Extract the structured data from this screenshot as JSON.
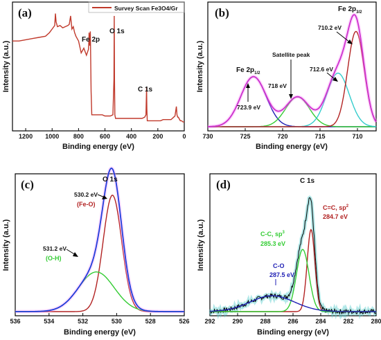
{
  "colors": {
    "survey": "#c0392b",
    "envelope": "#cc33cc",
    "fe_2p12": "#1f1fb4",
    "satellite": "#33cc33",
    "fe_2p32_low": "#33cccc",
    "fe_2p32_high": "#b22222",
    "o_envelope": "#1f3fd9",
    "o_feo": "#b22222",
    "o_oh": "#33cc33",
    "c_sp2": "#b22222",
    "c_sp3": "#33cc33",
    "c_co": "#1f1fb4",
    "c_fit": "#55cccc",
    "c_raw": "#000000",
    "axis": "#000000"
  },
  "chart_data": [
    {
      "panel": "(a)",
      "type": "line",
      "xlabel": "Binding energy (eV)",
      "ylabel": "Intensity (a.u.)",
      "xlim": [
        1300,
        0
      ],
      "xticks": [
        1200,
        1000,
        800,
        600,
        400,
        200,
        0
      ],
      "legend": {
        "label": "Survey Scan Fe3O4/Gr",
        "position": "top-right"
      },
      "series": [
        {
          "name": "Survey Scan Fe3O4/Gr",
          "x": [
            1300,
            1250,
            1200,
            1150,
            1100,
            1050,
            1020,
            1000,
            980,
            975,
            970,
            960,
            940,
            920,
            900,
            880,
            870,
            860,
            850,
            840,
            830,
            820,
            800,
            780,
            760,
            740,
            725,
            722,
            720,
            715,
            711,
            708,
            705,
            700,
            690,
            680,
            660,
            640,
            620,
            600,
            580,
            560,
            540,
            532,
            530,
            528,
            525,
            520,
            500,
            480,
            460,
            440,
            420,
            400,
            380,
            360,
            340,
            320,
            300,
            290,
            285,
            283,
            280,
            270,
            250,
            220,
            200,
            180,
            160,
            140,
            120,
            100,
            90,
            80,
            70,
            60,
            55,
            50,
            45,
            40,
            30,
            20,
            10,
            0
          ],
          "y": [
            0.72,
            0.72,
            0.73,
            0.74,
            0.75,
            0.76,
            0.79,
            0.82,
            0.85,
            0.95,
            0.88,
            0.84,
            0.85,
            0.83,
            0.84,
            0.85,
            0.86,
            0.93,
            0.82,
            0.84,
            0.79,
            0.76,
            0.72,
            0.62,
            0.66,
            0.6,
            0.65,
            0.72,
            0.79,
            0.68,
            0.8,
            0.58,
            0.3,
            0.1,
            0.1,
            0.1,
            0.1,
            0.1,
            0.1,
            0.09,
            0.09,
            0.09,
            0.1,
            0.4,
            0.93,
            0.4,
            0.1,
            0.07,
            0.07,
            0.07,
            0.07,
            0.07,
            0.07,
            0.07,
            0.07,
            0.07,
            0.07,
            0.07,
            0.08,
            0.1,
            0.33,
            0.15,
            0.05,
            0.05,
            0.05,
            0.05,
            0.05,
            0.05,
            0.06,
            0.06,
            0.06,
            0.06,
            0.07,
            0.08,
            0.09,
            0.17,
            0.1,
            0.08,
            0.08,
            0.07,
            0.05,
            0.05,
            0.04,
            0.04
          ]
        }
      ],
      "annotations": [
        {
          "text": "Fe 2p",
          "x": 711
        },
        {
          "text": "O 1s",
          "x": 530
        },
        {
          "text": "C 1s",
          "x": 285
        }
      ]
    },
    {
      "panel": "(b)",
      "type": "line",
      "xlabel": "Binding energy (eV)",
      "ylabel": "Intensity (a.u.)",
      "xlim": [
        730,
        707.5
      ],
      "xticks": [
        730,
        725,
        720,
        715,
        710
      ],
      "components": [
        {
          "center": 723.9,
          "height": 0.42,
          "sigma": 1.7,
          "color_key": "fe_2p12"
        },
        {
          "center": 718.0,
          "height": 0.25,
          "sigma": 1.6,
          "color_key": "satellite"
        },
        {
          "center": 712.6,
          "height": 0.45,
          "sigma": 1.5,
          "color_key": "fe_2p32_low"
        },
        {
          "center": 710.2,
          "height": 0.8,
          "sigma": 1.1,
          "color_key": "fe_2p32_high"
        }
      ],
      "annotations": [
        {
          "text": "Fe 2p",
          "sub": "1/2"
        },
        {
          "text": "723.9 eV"
        },
        {
          "text": "718 eV"
        },
        {
          "text": "Satellite peak"
        },
        {
          "text": "712.6 eV"
        },
        {
          "text": "710.2 eV"
        },
        {
          "text": "Fe 2p",
          "sub": "3/2"
        }
      ]
    },
    {
      "panel": "(c)",
      "type": "line",
      "xlabel": "Binding energy (eV)",
      "ylabel": "Intensity (a.u.)",
      "xlim": [
        536,
        526
      ],
      "xticks": [
        536,
        534,
        532,
        530,
        528,
        526
      ],
      "components": [
        {
          "center": 530.25,
          "height": 0.88,
          "sigma": 0.55,
          "color_key": "o_feo"
        },
        {
          "center": 531.2,
          "height": 0.3,
          "sigma": 1.05,
          "color_key": "o_oh"
        }
      ],
      "annotations": [
        {
          "text": "O 1s"
        },
        {
          "text": "530.2 eV"
        },
        {
          "text": "(Fe-O)"
        },
        {
          "text": "531.2 eV"
        },
        {
          "text": "(O-H)"
        }
      ]
    },
    {
      "panel": "(d)",
      "type": "line",
      "xlabel": "Binding energy (eV)",
      "ylabel": "Intensity (a.u.)",
      "xlim": [
        292,
        280
      ],
      "xticks": [
        292,
        290,
        288,
        286,
        284,
        282,
        280
      ],
      "components": [
        {
          "center": 284.7,
          "height": 0.62,
          "sigma": 0.28,
          "color_key": "c_sp2"
        },
        {
          "center": 285.3,
          "height": 0.47,
          "sigma": 0.45,
          "color_key": "c_sp3"
        },
        {
          "center": 287.5,
          "height": 0.12,
          "sigma": 1.6,
          "color_key": "c_co"
        }
      ],
      "annotations": [
        {
          "text": "C 1s"
        },
        {
          "text": "C=C, sp",
          "sup": "2"
        },
        {
          "text": "284.7 eV"
        },
        {
          "text": "C-C, sp",
          "sup": "3"
        },
        {
          "text": "285.3 eV"
        },
        {
          "text": "C-O"
        },
        {
          "text": "287.5 eV"
        }
      ]
    }
  ]
}
